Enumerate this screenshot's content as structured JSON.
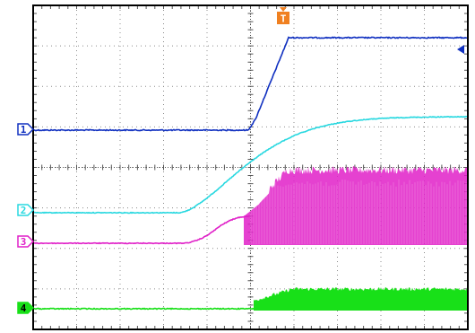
{
  "colors": {
    "background": "#ffffff",
    "frame": "#000000",
    "grid": "#8c8c8c",
    "trigger": "#f08020"
  },
  "trigger_marker": {
    "label": "T",
    "icon": "trigger-down-arrow"
  },
  "trigger_level_marker": {
    "icon": "left-arrow"
  },
  "channels": [
    {
      "id": "1",
      "label": "1",
      "color": "#1030c0",
      "marker_style": "outline"
    },
    {
      "id": "2",
      "label": "2",
      "color": "#28d8e0",
      "marker_style": "outline"
    },
    {
      "id": "3",
      "label": "3",
      "color": "#e020c8",
      "marker_style": "outline"
    },
    {
      "id": "4",
      "label": "4",
      "color": "#18e018",
      "marker_style": "filled"
    }
  ]
}
